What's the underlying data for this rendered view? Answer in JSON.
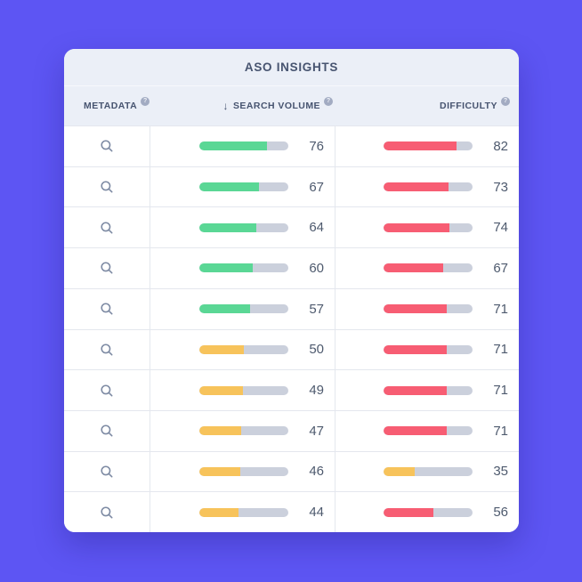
{
  "colors": {
    "page_background": "#5D55F3",
    "card_background": "#FFFFFF",
    "panel_header_background": "#EBEFF7",
    "grid_line": "#E4E7EE",
    "bar_track": "#CBD0DC",
    "heading_text": "#475470",
    "value_text": "#4E5A6E",
    "icon": "#7D8AA3",
    "help_badge": "#A2ABC2",
    "levels": {
      "green": "#5AD795",
      "yellow": "#F7C35B",
      "red": "#F75D73"
    }
  },
  "panel": {
    "title": "ASO INSIGHTS"
  },
  "table": {
    "headers": [
      {
        "label": "METADATA",
        "help_glyph": "?"
      },
      {
        "label": "SEARCH VOLUME",
        "help_glyph": "?",
        "sort_glyph": "↓"
      },
      {
        "label": "DIFFICULTY",
        "help_glyph": "?"
      }
    ],
    "rows": [
      {
        "search_volume": {
          "value": 76,
          "level": "green"
        },
        "difficulty": {
          "value": 82,
          "level": "red"
        }
      },
      {
        "search_volume": {
          "value": 67,
          "level": "green"
        },
        "difficulty": {
          "value": 73,
          "level": "red"
        }
      },
      {
        "search_volume": {
          "value": 64,
          "level": "green"
        },
        "difficulty": {
          "value": 74,
          "level": "red"
        }
      },
      {
        "search_volume": {
          "value": 60,
          "level": "green"
        },
        "difficulty": {
          "value": 67,
          "level": "red"
        }
      },
      {
        "search_volume": {
          "value": 57,
          "level": "green"
        },
        "difficulty": {
          "value": 71,
          "level": "red"
        }
      },
      {
        "search_volume": {
          "value": 50,
          "level": "yellow"
        },
        "difficulty": {
          "value": 71,
          "level": "red"
        }
      },
      {
        "search_volume": {
          "value": 49,
          "level": "yellow"
        },
        "difficulty": {
          "value": 71,
          "level": "red"
        }
      },
      {
        "search_volume": {
          "value": 47,
          "level": "yellow"
        },
        "difficulty": {
          "value": 71,
          "level": "red"
        }
      },
      {
        "search_volume": {
          "value": 46,
          "level": "yellow"
        },
        "difficulty": {
          "value": 35,
          "level": "yellow"
        }
      },
      {
        "search_volume": {
          "value": 44,
          "level": "yellow"
        },
        "difficulty": {
          "value": 56,
          "level": "red"
        }
      }
    ]
  }
}
